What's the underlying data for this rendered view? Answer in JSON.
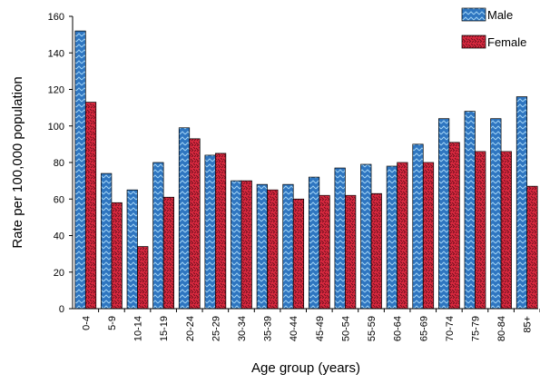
{
  "chart_data": {
    "type": "bar",
    "xlabel": "Age group (years)",
    "ylabel": "Rate per 100,000 population",
    "ylim": [
      0,
      160
    ],
    "yticks": [
      0,
      20,
      40,
      60,
      80,
      100,
      120,
      140,
      160
    ],
    "grid": false,
    "legend_position": "top-right",
    "categories": [
      "0-4",
      "5-9",
      "10-14",
      "15-19",
      "20-24",
      "25-29",
      "30-34",
      "35-39",
      "40-44",
      "45-49",
      "50-54",
      "55-59",
      "60-64",
      "65-69",
      "70-74",
      "75-79",
      "80-84",
      "85+"
    ],
    "series": [
      {
        "name": "Male",
        "color": "#2e75c0",
        "values": [
          152,
          74,
          65,
          80,
          99,
          84,
          70,
          68,
          68,
          72,
          77,
          79,
          78,
          90,
          104,
          108,
          104,
          116
        ]
      },
      {
        "name": "Female",
        "color": "#d9293f",
        "values": [
          113,
          58,
          34,
          61,
          93,
          85,
          70,
          65,
          60,
          62,
          62,
          63,
          80,
          80,
          91,
          86,
          86,
          67
        ]
      }
    ]
  }
}
